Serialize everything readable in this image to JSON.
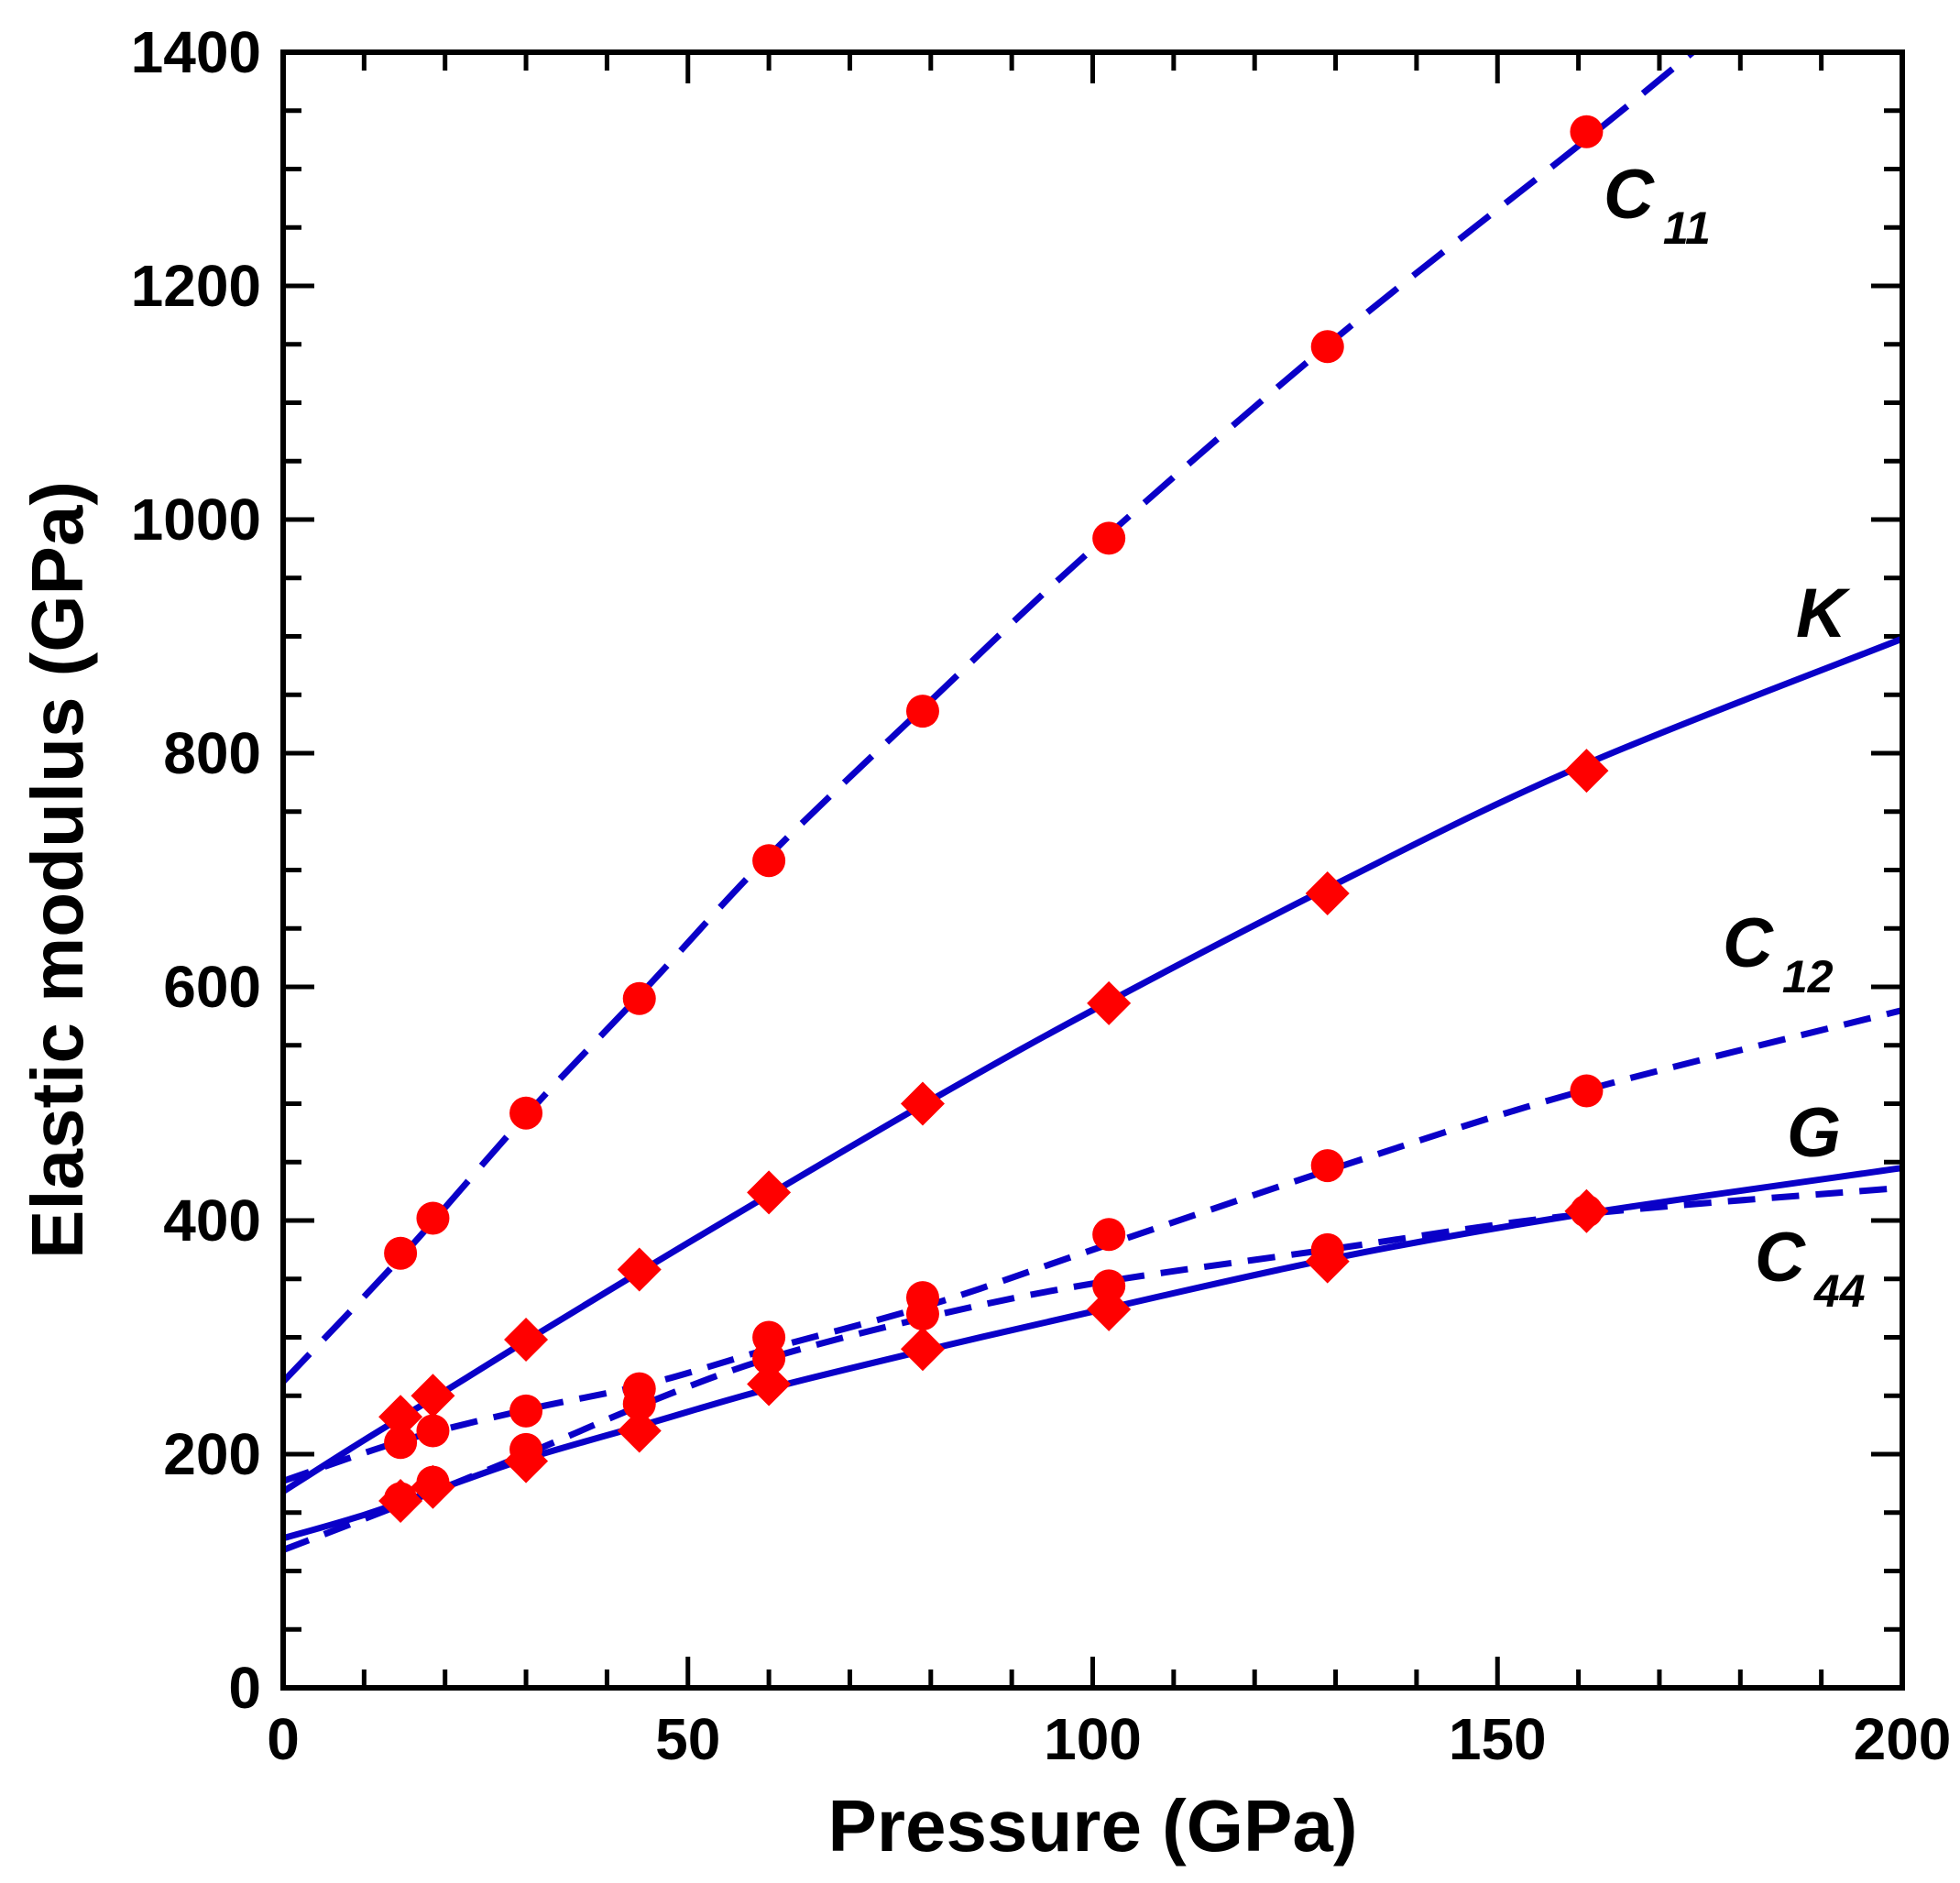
{
  "chart_data": {
    "type": "scatter",
    "title": "",
    "xlabel": "Pressure (GPa)",
    "ylabel": "Elastic modulus (GPa)",
    "xlim": [
      0,
      200
    ],
    "ylim": [
      0,
      1400
    ],
    "xticks": [
      0,
      50,
      100,
      150,
      200
    ],
    "yticks": [
      0,
      200,
      400,
      600,
      800,
      1000,
      1200,
      1400
    ],
    "xticks_minor": [
      0,
      10,
      20,
      30,
      40,
      50,
      60,
      70,
      80,
      90,
      100,
      110,
      120,
      130,
      140,
      150,
      160,
      170,
      180,
      190,
      200
    ],
    "yticks_minor": [
      0,
      50,
      100,
      150,
      200,
      250,
      300,
      350,
      400,
      450,
      500,
      550,
      600,
      650,
      700,
      750,
      800,
      850,
      900,
      950,
      1000,
      1050,
      1100,
      1150,
      1200,
      1250,
      1300,
      1350,
      1400
    ],
    "grid": false,
    "series": [
      {
        "name": "C11",
        "label_main": "C",
        "label_sub": "11",
        "marker": "circle",
        "line_style": "dashed-long",
        "points": [
          [
            14.5,
            372
          ],
          [
            18.5,
            402
          ],
          [
            30,
            492
          ],
          [
            44,
            590
          ],
          [
            60,
            708
          ],
          [
            79,
            836
          ],
          [
            102,
            984
          ],
          [
            129,
            1148
          ],
          [
            161,
            1332
          ]
        ],
        "fit": [
          [
            0,
            262
          ],
          [
            15,
            372
          ],
          [
            30,
            490
          ],
          [
            45,
            600
          ],
          [
            60,
            712
          ],
          [
            80,
            845
          ],
          [
            100,
            975
          ],
          [
            130,
            1155
          ],
          [
            160,
            1320
          ],
          [
            175,
            1405
          ]
        ]
      },
      {
        "name": "K",
        "label_main": "K",
        "label_sub": "",
        "marker": "diamond",
        "line_style": "solid",
        "points": [
          [
            14.5,
            232
          ],
          [
            18.5,
            250
          ],
          [
            30,
            298
          ],
          [
            44,
            358
          ],
          [
            60,
            424
          ],
          [
            79,
            500
          ],
          [
            102,
            586
          ],
          [
            129,
            680
          ],
          [
            161,
            785
          ]
        ],
        "fit": [
          [
            0,
            168
          ],
          [
            10,
            212
          ],
          [
            20,
            254
          ],
          [
            30,
            297
          ],
          [
            45,
            360
          ],
          [
            60,
            422
          ],
          [
            80,
            503
          ],
          [
            100,
            580
          ],
          [
            130,
            688
          ],
          [
            160,
            788
          ],
          [
            200,
            898
          ]
        ]
      },
      {
        "name": "C12",
        "label_main": "C",
        "label_sub": "12",
        "marker": "circle",
        "line_style": "dashed",
        "points": [
          [
            14.5,
            210
          ],
          [
            18.5,
            220
          ],
          [
            30,
            237
          ],
          [
            44,
            256
          ],
          [
            60,
            300
          ],
          [
            79,
            334
          ],
          [
            102,
            388
          ],
          [
            129,
            447
          ],
          [
            161,
            511
          ]
        ],
        "fit": [
          [
            0,
            177
          ],
          [
            15,
            212
          ],
          [
            30,
            238
          ],
          [
            45,
            260
          ],
          [
            60,
            290
          ],
          [
            80,
            328
          ],
          [
            100,
            375
          ],
          [
            130,
            445
          ],
          [
            160,
            510
          ],
          [
            200,
            580
          ]
        ]
      },
      {
        "name": "G",
        "label_main": "G",
        "label_sub": "",
        "marker": "diamond",
        "line_style": "solid",
        "points": [
          [
            14.5,
            160
          ],
          [
            18.5,
            172
          ],
          [
            30,
            194
          ],
          [
            44,
            220
          ],
          [
            60,
            260
          ],
          [
            79,
            290
          ],
          [
            102,
            324
          ],
          [
            129,
            365
          ],
          [
            161,
            408
          ]
        ],
        "fit": [
          [
            0,
            128
          ],
          [
            10,
            148
          ],
          [
            20,
            172
          ],
          [
            30,
            196
          ],
          [
            45,
            226
          ],
          [
            60,
            256
          ],
          [
            80,
            290
          ],
          [
            100,
            322
          ],
          [
            130,
            368
          ],
          [
            160,
            405
          ],
          [
            200,
            445
          ]
        ]
      },
      {
        "name": "C44",
        "label_main": "C",
        "label_sub": "44",
        "marker": "circle",
        "line_style": "dashed",
        "points": [
          [
            14.5,
            162
          ],
          [
            18.5,
            176
          ],
          [
            30,
            204
          ],
          [
            44,
            243
          ],
          [
            60,
            282
          ],
          [
            79,
            320
          ],
          [
            102,
            344
          ],
          [
            129,
            375
          ],
          [
            161,
            408
          ]
        ],
        "fit": [
          [
            0,
            118
          ],
          [
            15,
            158
          ],
          [
            30,
            200
          ],
          [
            45,
            244
          ],
          [
            60,
            282
          ],
          [
            80,
            318
          ],
          [
            100,
            346
          ],
          [
            130,
            376
          ],
          [
            160,
            405
          ],
          [
            200,
            428
          ]
        ]
      }
    ]
  },
  "colors": {
    "line": "#0a00c8",
    "marker": "#ff0000",
    "axis": "#000000"
  }
}
